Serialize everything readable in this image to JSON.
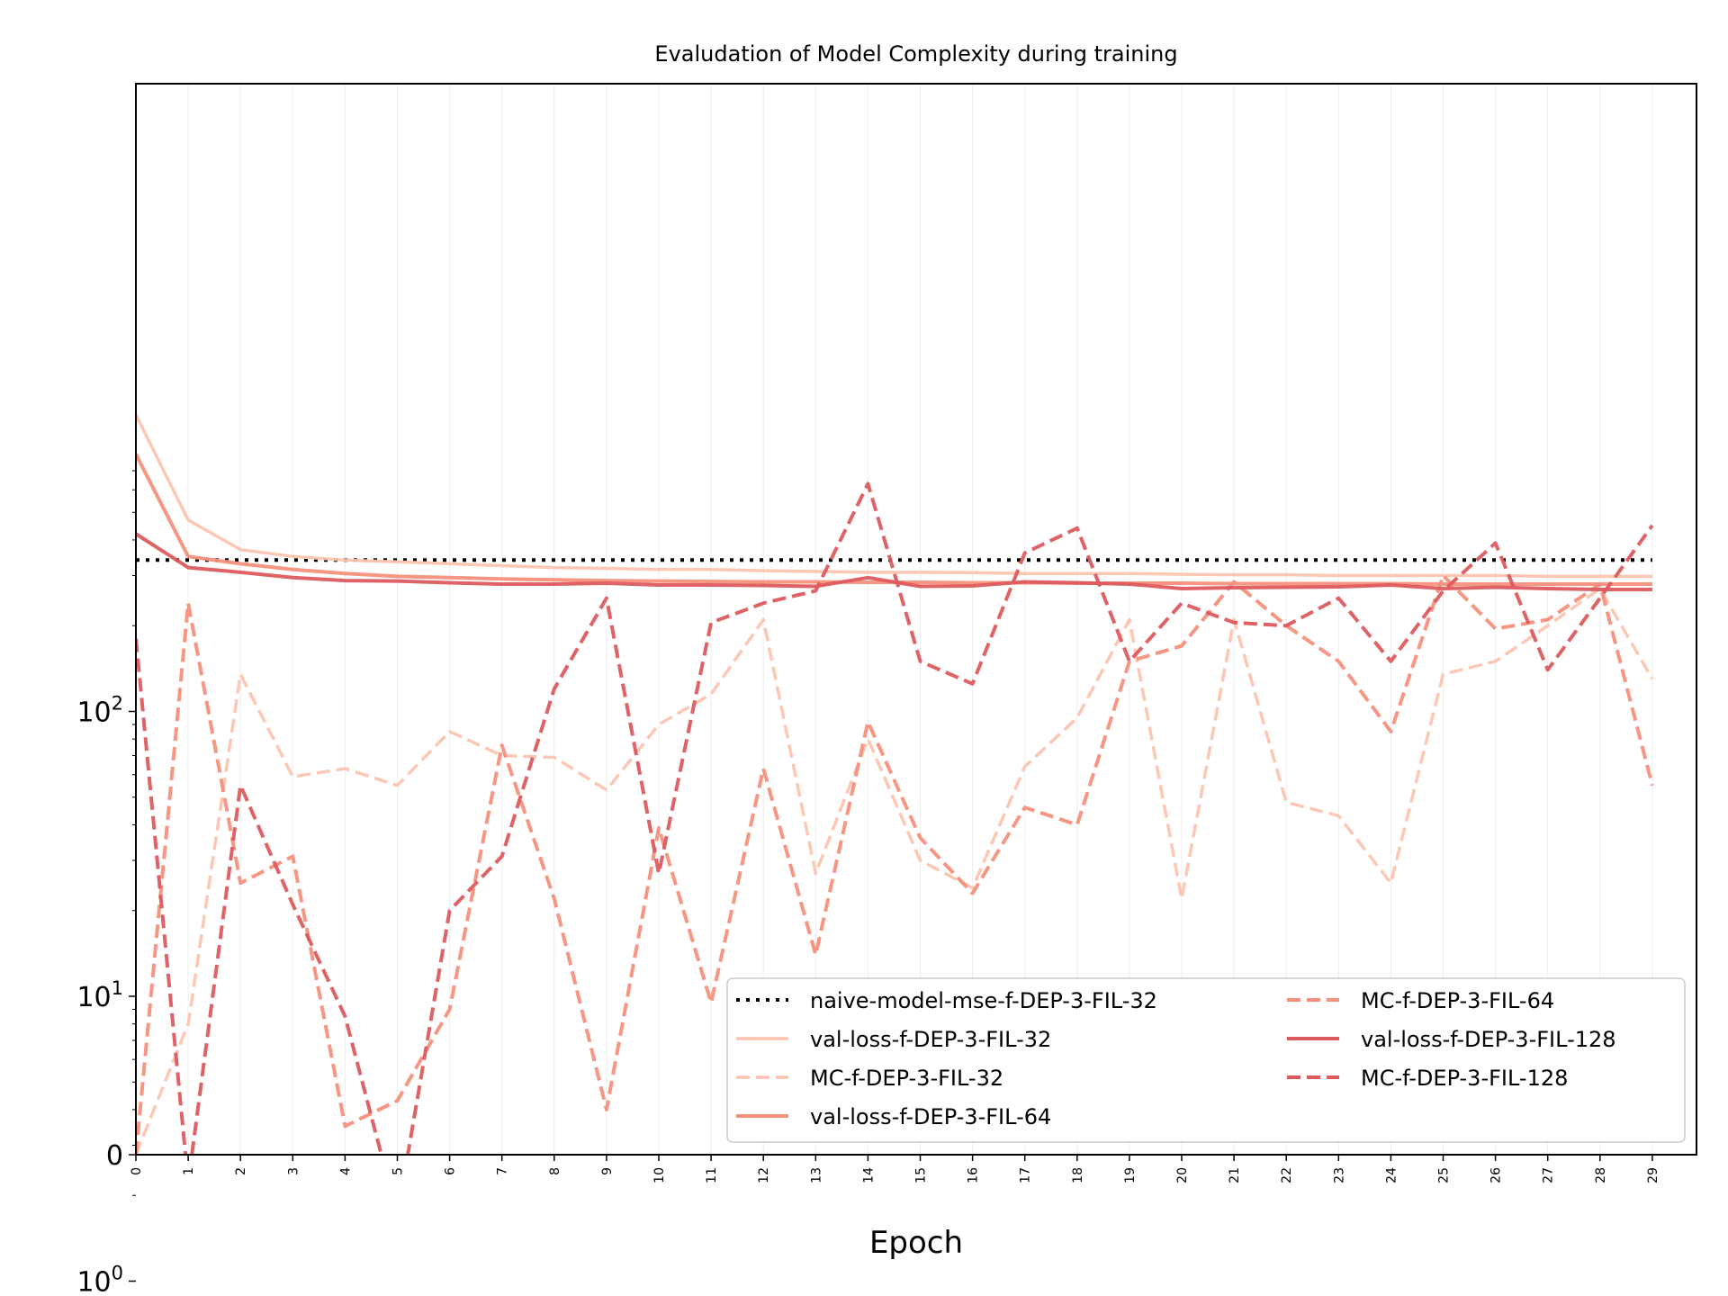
{
  "chart_data": {
    "type": "line",
    "title": "Evaludation of Model Complexity during training",
    "xlabel": "Epoch",
    "ylabel": "",
    "x": [
      0,
      1,
      2,
      3,
      4,
      5,
      6,
      7,
      8,
      9,
      10,
      11,
      12,
      13,
      14,
      15,
      16,
      17,
      18,
      19,
      20,
      21,
      22,
      23,
      24,
      25,
      26,
      27,
      28,
      29
    ],
    "y_scale": "symlog",
    "ylim": [
      0,
      700
    ],
    "y_ticks": [
      {
        "value": 0,
        "base": "0",
        "exp": ""
      },
      {
        "value": 1,
        "base": "10",
        "exp": "0"
      },
      {
        "value": 10,
        "base": "10",
        "exp": "1"
      },
      {
        "value": 100,
        "base": "10",
        "exp": "2"
      }
    ],
    "grid": "x-only",
    "legend": {
      "position": "lower-right",
      "columns": 2
    },
    "series": [
      {
        "name": "naive-model-mse-f-DEP-3-FIL-32",
        "color": "#000000",
        "dash": "dotted",
        "width": 4,
        "values": [
          340,
          340,
          340,
          340,
          340,
          340,
          340,
          340,
          340,
          340,
          340,
          340,
          340,
          340,
          340,
          340,
          340,
          340,
          340,
          340,
          340,
          340,
          340,
          340,
          340,
          340,
          340,
          340,
          340,
          340
        ]
      },
      {
        "name": "val-loss-f-DEP-3-FIL-32",
        "color": "#fcc4b0",
        "dash": "solid",
        "width": 3.5,
        "values": [
          1100,
          470,
          370,
          350,
          340,
          335,
          330,
          325,
          320,
          318,
          315,
          315,
          312,
          310,
          308,
          308,
          307,
          305,
          305,
          305,
          303,
          302,
          302,
          300,
          300,
          300,
          300,
          298,
          298,
          298
        ]
      },
      {
        "name": "MC-f-DEP-3-FIL-32",
        "color": "#fcc4b0",
        "dash": "dashed",
        "width": 3.5,
        "values": [
          0,
          8,
          135,
          59,
          63,
          55,
          85,
          70,
          69,
          53,
          90,
          115,
          210,
          27,
          80,
          30,
          24,
          64,
          95,
          210,
          22,
          210,
          48,
          43,
          25,
          135,
          150,
          200,
          270,
          130
        ]
      },
      {
        "name": "val-loss-f-DEP-3-FIL-64",
        "color": "#f6907c",
        "dash": "solid",
        "width": 4,
        "values": [
          800,
          350,
          330,
          315,
          305,
          298,
          295,
          292,
          290,
          288,
          287,
          286,
          285,
          285,
          284,
          284,
          283,
          283,
          282,
          282,
          282,
          281,
          281,
          281,
          281,
          280,
          280,
          280,
          280,
          280
        ]
      },
      {
        "name": "MC-f-DEP-3-FIL-64",
        "color": "#f6907c",
        "dash": "dashed",
        "width": 4,
        "values": [
          0,
          240,
          25,
          31,
          3.5,
          4.3,
          9,
          76,
          22,
          4,
          39,
          9.5,
          63,
          14,
          92,
          36,
          23,
          46,
          40,
          150,
          170,
          285,
          200,
          150,
          85,
          300,
          195,
          210,
          280,
          55
        ]
      },
      {
        "name": "val-loss-f-DEP-3-FIL-128",
        "color": "#dd5a5e",
        "dash": "solid",
        "width": 4,
        "values": [
          420,
          320,
          308,
          295,
          288,
          287,
          283,
          280,
          280,
          282,
          278,
          278,
          277,
          275,
          295,
          275,
          276,
          285,
          283,
          280,
          270,
          272,
          273,
          274,
          278,
          270,
          273,
          270,
          268,
          268
        ]
      },
      {
        "name": "MC-f-DEP-3-FIL-128",
        "color": "#dd5a5e",
        "dash": "dashed",
        "width": 4,
        "values": [
          180,
          0.22,
          55,
          21,
          8.5,
          1.7,
          20,
          31,
          120,
          250,
          27,
          205,
          240,
          265,
          630,
          150,
          125,
          360,
          440,
          150,
          240,
          205,
          200,
          250,
          150,
          265,
          390,
          140,
          250,
          450
        ]
      }
    ]
  }
}
